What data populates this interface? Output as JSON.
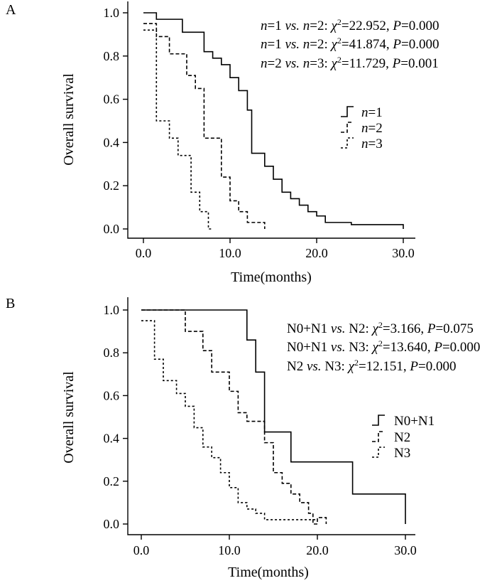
{
  "chart_data": [
    {
      "panel": "A",
      "type": "line",
      "subtype": "kaplan-meier step",
      "xlabel": "Time(months)",
      "ylabel": "Overall survival",
      "xlim": [
        0,
        30
      ],
      "ylim": [
        0,
        1.0
      ],
      "xticks": [
        0,
        10,
        20,
        30
      ],
      "xtick_labels": [
        "0.0",
        "10.0",
        "20.0",
        "30.0"
      ],
      "yticks": [
        0,
        0.2,
        0.4,
        0.6,
        0.8,
        1.0
      ],
      "ytick_labels": [
        "0.0",
        "0.2",
        "0.4",
        "0.6",
        "0.8",
        "1.0"
      ],
      "annotations": [
        {
          "group_a": "n=1",
          "group_b": "n=2",
          "chi2": "22.952",
          "p": "0.000"
        },
        {
          "group_a": "n=1",
          "group_b": "n=2",
          "chi2": "41.874",
          "p": "0.000"
        },
        {
          "group_a": "n=2",
          "group_b": "n=3",
          "chi2": "11.729",
          "p": "0.001"
        }
      ],
      "series": [
        {
          "name": "n=1",
          "var": "n",
          "level": "1",
          "style": "solid",
          "x": [
            0,
            1.5,
            4.5,
            7,
            8,
            9,
            10,
            11,
            12,
            12.5,
            14,
            15,
            16,
            17,
            18,
            19,
            20,
            21,
            24,
            30
          ],
          "y": [
            1.0,
            0.97,
            0.91,
            0.82,
            0.79,
            0.76,
            0.7,
            0.64,
            0.55,
            0.35,
            0.29,
            0.23,
            0.17,
            0.14,
            0.11,
            0.08,
            0.06,
            0.03,
            0.02,
            0.0
          ]
        },
        {
          "name": "n=2",
          "var": "n",
          "level": "2",
          "style": "dashed",
          "x": [
            0,
            1.5,
            3,
            5,
            6,
            7,
            9,
            10,
            11,
            12,
            14
          ],
          "y": [
            0.95,
            0.89,
            0.81,
            0.71,
            0.65,
            0.42,
            0.24,
            0.13,
            0.08,
            0.03,
            0.0
          ]
        },
        {
          "name": "n=3",
          "var": "n",
          "level": "3",
          "style": "dashed",
          "x": [
            0,
            1.5,
            3,
            4,
            5.5,
            6.5,
            7.5,
            8
          ],
          "y": [
            0.92,
            0.5,
            0.42,
            0.34,
            0.17,
            0.08,
            0.0,
            0.0
          ]
        }
      ]
    },
    {
      "panel": "B",
      "type": "line",
      "subtype": "kaplan-meier step",
      "xlabel": "Time(months)",
      "ylabel": "Overall survival",
      "xlim": [
        0,
        30
      ],
      "ylim": [
        0,
        1.0
      ],
      "xticks": [
        0,
        10,
        20,
        30
      ],
      "xtick_labels": [
        "0.0",
        "10.0",
        "20.0",
        "30.0"
      ],
      "yticks": [
        0,
        0.2,
        0.4,
        0.6,
        0.8,
        1.0
      ],
      "ytick_labels": [
        "0.0",
        "0.2",
        "0.4",
        "0.6",
        "0.8",
        "1.0"
      ],
      "annotations": [
        {
          "group_a": "N0+N1",
          "group_b": "N2",
          "chi2": "3.166",
          "p": "0.075"
        },
        {
          "group_a": "N0+N1",
          "group_b": "N3",
          "chi2": "13.640",
          "p": "0.000"
        },
        {
          "group_a": "N2",
          "group_b": "N3",
          "chi2": "12.151",
          "p": "0.000"
        }
      ],
      "series": [
        {
          "name": "N0+N1",
          "style": "solid",
          "x": [
            0,
            12,
            13,
            14,
            17,
            24,
            30
          ],
          "y": [
            1.0,
            0.86,
            0.71,
            0.43,
            0.29,
            0.14,
            0.0
          ]
        },
        {
          "name": "N2",
          "style": "dashed",
          "x": [
            0,
            5,
            7,
            8,
            10,
            11,
            12,
            14,
            15,
            16,
            17,
            18,
            19,
            19.5,
            20,
            21
          ],
          "y": [
            1.0,
            0.9,
            0.81,
            0.71,
            0.62,
            0.52,
            0.48,
            0.38,
            0.24,
            0.19,
            0.14,
            0.1,
            0.05,
            0.0,
            0.03,
            0.0
          ]
        },
        {
          "name": "N3",
          "style": "dashed",
          "x": [
            0,
            1.5,
            2.5,
            4,
            5,
            6,
            7,
            8,
            9,
            10,
            11,
            12,
            13,
            14,
            20
          ],
          "y": [
            0.95,
            0.77,
            0.67,
            0.61,
            0.55,
            0.45,
            0.36,
            0.31,
            0.24,
            0.17,
            0.1,
            0.07,
            0.05,
            0.02,
            0.02
          ]
        }
      ]
    }
  ]
}
